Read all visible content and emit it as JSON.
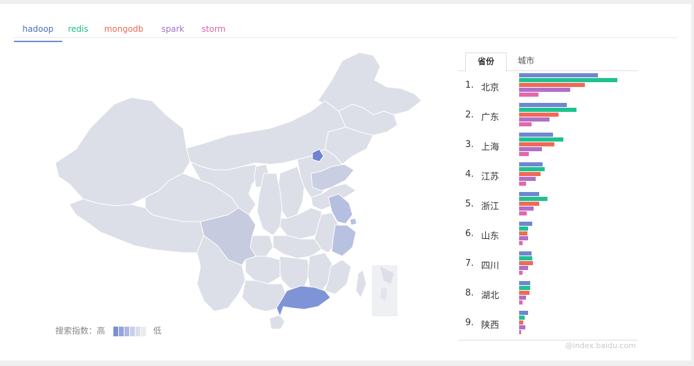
{
  "tabs": [
    {
      "label": "hadoop",
      "color": "#4a6db5",
      "active": true
    },
    {
      "label": "redis",
      "color": "#1bbd8b"
    },
    {
      "label": "mongodb",
      "color": "#ec6b57"
    },
    {
      "label": "spark",
      "color": "#a66fc3"
    },
    {
      "label": "storm",
      "color": "#e060a4"
    }
  ],
  "map": {
    "base_color": "#dcdfe8",
    "border_color": "#ffffff",
    "highlights": {
      "beijing": "#6e84d0",
      "guangdong": "#7f94d6",
      "jiangsu": "#b5bfe0",
      "zhejiang": "#b8c1e0",
      "sichuan": "#c6cbe0",
      "shandong": "#c9cee2",
      "shanghai": "#b5bfe0"
    }
  },
  "legend": {
    "label": "搜索指数：高",
    "low_label": "低",
    "swatches": [
      "#7b8fd6",
      "#94a5dc",
      "#aeb9e2",
      "#c8cfe8",
      "#dcdfe8",
      "#e9ebf0"
    ]
  },
  "rank_tabs": [
    {
      "label": "省份",
      "active": true
    },
    {
      "label": "城市"
    }
  ],
  "chart_data": {
    "type": "bar",
    "orientation": "horizontal",
    "categories": [
      "北京",
      "广东",
      "上海",
      "江苏",
      "浙江",
      "山东",
      "四川",
      "湖北",
      "陕西"
    ],
    "ranks": [
      "1.",
      "2.",
      "3.",
      "4.",
      "5.",
      "6.",
      "7.",
      "8.",
      "9."
    ],
    "series": [
      {
        "name": "hadoop",
        "color": "#6e87d0",
        "values": [
          114,
          69,
          49,
          34,
          29,
          19,
          18,
          16,
          13
        ]
      },
      {
        "name": "redis",
        "color": "#1fc18f",
        "values": [
          142,
          83,
          64,
          37,
          41,
          13,
          19,
          16,
          8
        ]
      },
      {
        "name": "mongodb",
        "color": "#ef6a59",
        "values": [
          95,
          57,
          51,
          31,
          29,
          12,
          20,
          15,
          6
        ]
      },
      {
        "name": "spark",
        "color": "#b06fc8",
        "values": [
          74,
          44,
          33,
          24,
          21,
          13,
          13,
          10,
          9
        ]
      },
      {
        "name": "storm",
        "color": "#e268ab",
        "values": [
          28,
          18,
          14,
          10,
          11,
          5,
          5,
          5,
          3
        ]
      }
    ]
  },
  "source": "@index.baidu.com"
}
